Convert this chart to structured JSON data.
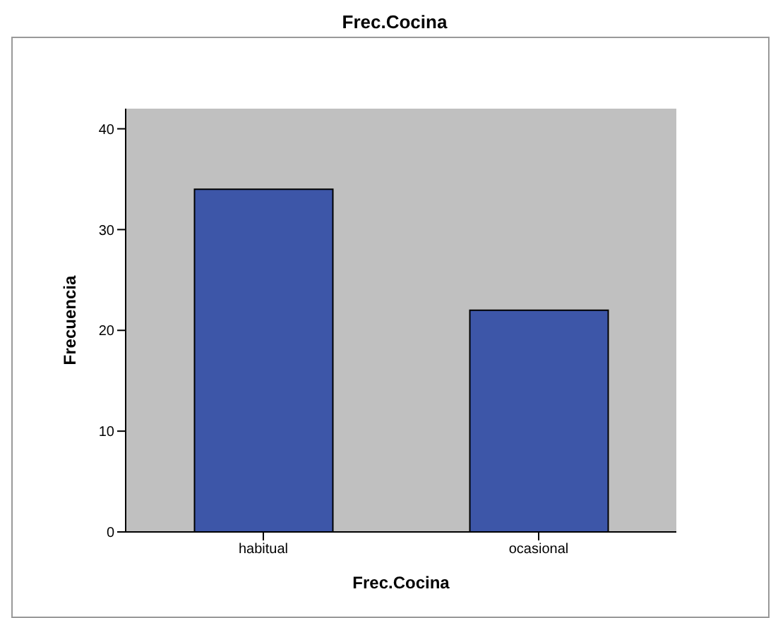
{
  "chart_data": {
    "type": "bar",
    "title": "Frec.Cocina",
    "xlabel": "Frec.Cocina",
    "ylabel": "Frecuencia",
    "categories": [
      "habitual",
      "ocasional"
    ],
    "values": [
      34,
      22
    ],
    "color": "#3d56a8",
    "ylim": [
      0,
      42
    ],
    "yticks": [
      0,
      10,
      20,
      30,
      40
    ],
    "grid": false
  }
}
